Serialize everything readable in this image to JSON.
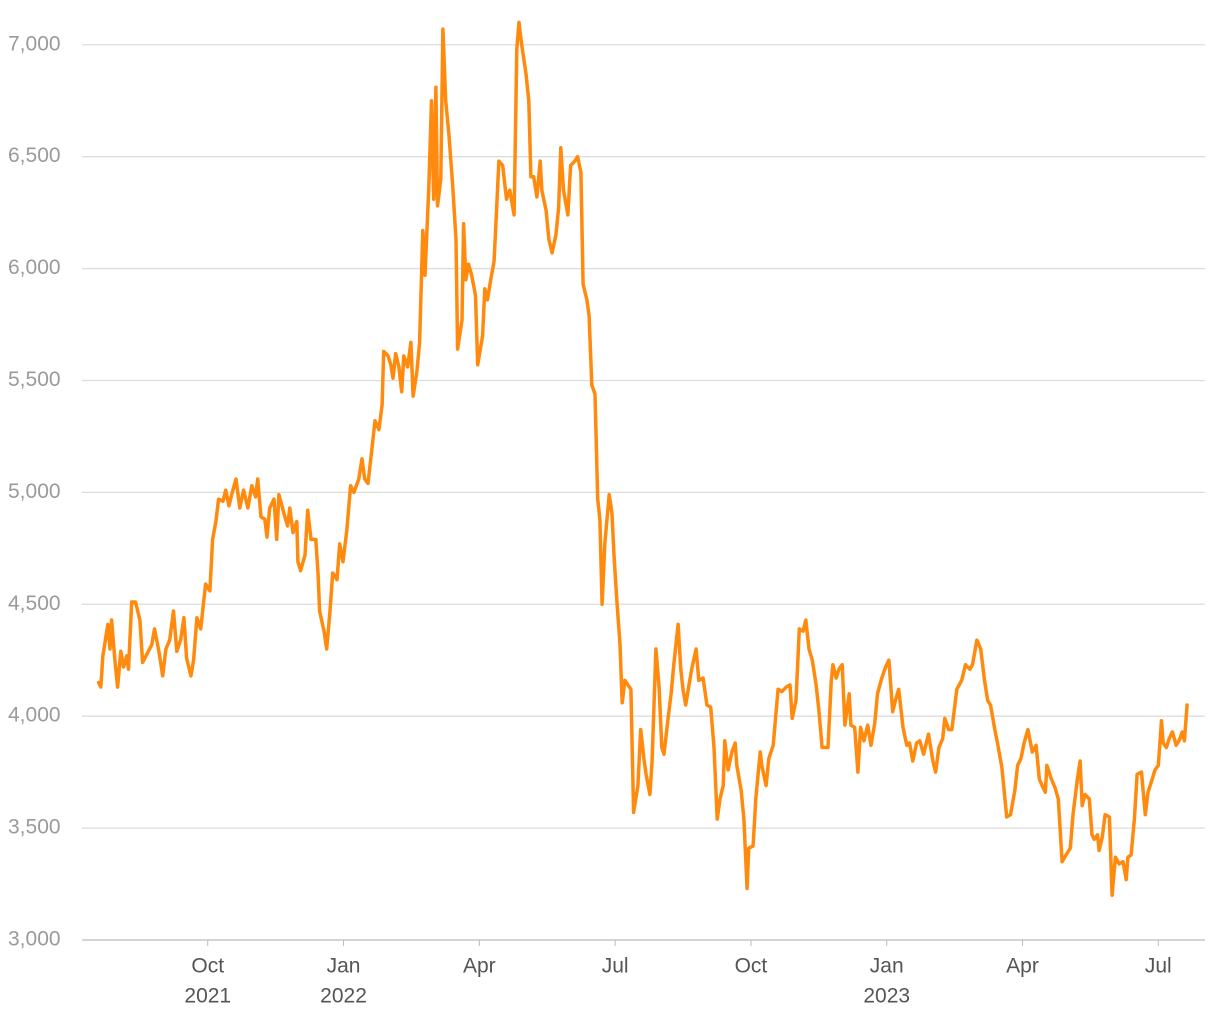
{
  "chart_data": {
    "type": "line",
    "color": "#ff8a0d",
    "grid": true,
    "xlim": [
      2021.524,
      2023.586
    ],
    "xticks": [
      {
        "value": 2021.75,
        "label": "Oct",
        "year": "2021"
      },
      {
        "value": 2022.0,
        "label": "Jan",
        "year": "2022"
      },
      {
        "value": 2022.25,
        "label": "Apr"
      },
      {
        "value": 2022.5,
        "label": "Jul"
      },
      {
        "value": 2022.75,
        "label": "Oct"
      },
      {
        "value": 2023.0,
        "label": "Jan",
        "year": "2023"
      },
      {
        "value": 2023.25,
        "label": "Apr"
      },
      {
        "value": 2023.5,
        "label": "Jul"
      }
    ],
    "ylim": [
      3000,
      7200
    ],
    "yticks": [
      {
        "value": 3000,
        "label": "3,000"
      },
      {
        "value": 3500,
        "label": "3,500"
      },
      {
        "value": 4000,
        "label": "4,000"
      },
      {
        "value": 4500,
        "label": "4,500"
      },
      {
        "value": 5000,
        "label": "5,000"
      },
      {
        "value": 5500,
        "label": "5,500"
      },
      {
        "value": 6000,
        "label": "6,000"
      },
      {
        "value": 6500,
        "label": "6,500"
      },
      {
        "value": 7000,
        "label": "7,000"
      }
    ],
    "x": [
      2021.549,
      2021.553,
      2021.557,
      2021.566,
      2021.57,
      2021.573,
      2021.579,
      2021.584,
      2021.59,
      2021.595,
      2021.601,
      2021.604,
      2021.61,
      2021.617,
      2021.625,
      2021.63,
      2021.647,
      2021.652,
      2021.66,
      2021.667,
      2021.673,
      2021.68,
      2021.687,
      2021.693,
      2021.7,
      2021.706,
      2021.711,
      2021.719,
      2021.724,
      2021.73,
      2021.737,
      2021.746,
      2021.754,
      2021.759,
      2021.765,
      2021.77,
      2021.778,
      2021.783,
      2021.789,
      2021.794,
      2021.802,
      2021.809,
      2021.816,
      2021.824,
      2021.831,
      2021.838,
      2021.842,
      2021.848,
      2021.855,
      2021.859,
      2021.864,
      2021.872,
      2021.877,
      2021.881,
      2021.892,
      2021.897,
      2021.901,
      2021.907,
      2021.914,
      2021.916,
      2021.921,
      2021.929,
      2021.934,
      2021.94,
      2021.949,
      2021.953,
      2021.956,
      2021.964,
      2021.969,
      2021.975,
      2021.98,
      2021.988,
      2021.993,
      2021.999,
      2022.006,
      2022.013,
      2022.019,
      2022.028,
      2022.034,
      2022.039,
      2022.045,
      2022.052,
      2022.058,
      2022.065,
      2022.071,
      2022.074,
      2022.082,
      2022.087,
      2022.091,
      2022.096,
      2022.102,
      2022.107,
      2022.111,
      2022.118,
      2022.124,
      2022.128,
      2022.135,
      2022.14,
      2022.146,
      2022.15,
      2022.157,
      2022.162,
      2022.166,
      2022.17,
      2022.173,
      2022.179,
      2022.183,
      2022.188,
      2022.194,
      2022.201,
      2022.207,
      2022.21,
      2022.218,
      2022.221,
      2022.225,
      2022.23,
      2022.236,
      2022.243,
      2022.247,
      2022.256,
      2022.26,
      2022.265,
      2022.271,
      2022.277,
      2022.28,
      2022.286,
      2022.293,
      2022.3,
      2022.306,
      2022.314,
      2022.319,
      2022.323,
      2022.328,
      2022.336,
      2022.341,
      2022.345,
      2022.35,
      2022.356,
      2022.362,
      2022.365,
      2022.373,
      2022.378,
      2022.384,
      2022.391,
      2022.396,
      2022.4,
      2022.405,
      2022.413,
      2022.418,
      2022.426,
      2022.431,
      2022.437,
      2022.441,
      2022.448,
      2022.452,
      2022.457,
      2022.463,
      2022.468,
      2022.472,
      2022.476,
      2022.481,
      2022.489,
      2022.494,
      2022.498,
      2022.503,
      2022.509,
      2022.513,
      2022.518,
      2022.529,
      2022.534,
      2022.542,
      2022.547,
      2022.553,
      2022.557,
      2022.564,
      2022.568,
      2022.575,
      2022.581,
      2022.586,
      2022.59,
      2022.597,
      2022.603,
      2022.608,
      2022.616,
      2022.621,
      2022.625,
      2022.63,
      2022.636,
      2022.641,
      2022.649,
      2022.654,
      2022.662,
      2022.669,
      2022.676,
      2022.682,
      2022.688,
      2022.693,
      2022.699,
      2022.702,
      2022.708,
      2022.715,
      2022.721,
      2022.724,
      2022.732,
      2022.737,
      2022.743,
      2022.746,
      2022.754,
      2022.759,
      2022.767,
      2022.77,
      2022.778,
      2022.783,
      2022.791,
      2022.796,
      2022.8,
      2022.807,
      2022.815,
      2022.822,
      2022.826,
      2022.833,
      2022.839,
      2022.846,
      2022.851,
      2022.857,
      2022.863,
      2022.87,
      2022.875,
      2022.881,
      2022.892,
      2022.898,
      2022.901,
      2022.907,
      2022.912,
      2022.918,
      2022.923,
      2022.931,
      2022.934,
      2022.941,
      2022.947,
      2022.952,
      2022.958,
      2022.965,
      2022.971,
      2022.978,
      2022.983,
      2022.991,
      2022.998,
      2023.004,
      2023.011,
      2023.016,
      2023.022,
      2023.03,
      2023.037,
      2023.042,
      2023.048,
      2023.055,
      2023.061,
      2023.068,
      2023.077,
      2023.085,
      2023.09,
      2023.096,
      2023.103,
      2023.107,
      2023.114,
      2023.12,
      2023.129,
      2023.138,
      2023.145,
      2023.153,
      2023.158,
      2023.166,
      2023.173,
      2023.18,
      2023.186,
      2023.191,
      2023.199,
      2023.204,
      2023.212,
      2023.221,
      2023.228,
      2023.236,
      2023.241,
      2023.247,
      2023.253,
      2023.26,
      2023.268,
      2023.275,
      2023.281,
      2023.286,
      2023.292,
      2023.295,
      2023.303,
      2023.31,
      2023.316,
      2023.323,
      2023.33,
      2023.338,
      2023.343,
      2023.351,
      2023.356,
      2023.36,
      2023.365,
      2023.373,
      2023.378,
      2023.382,
      2023.388,
      2023.391,
      2023.397,
      2023.402,
      2023.41,
      2023.415,
      2023.421,
      2023.428,
      2023.435,
      2023.441,
      2023.444,
      2023.45,
      2023.456,
      2023.461,
      2023.469,
      2023.476,
      2023.481,
      2023.489,
      2023.494,
      2023.5,
      2023.506,
      2023.509,
      2023.515,
      2023.52,
      2023.526,
      2023.533,
      2023.54,
      2023.544,
      2023.548,
      2023.553
    ],
    "values": [
      4150,
      4130,
      4270,
      4410,
      4300,
      4430,
      4250,
      4130,
      4290,
      4220,
      4270,
      4210,
      4510,
      4510,
      4430,
      4240,
      4320,
      4390,
      4290,
      4180,
      4300,
      4340,
      4470,
      4290,
      4340,
      4440,
      4260,
      4180,
      4250,
      4440,
      4390,
      4590,
      4560,
      4790,
      4870,
      4970,
      4960,
      5010,
      4940,
      4990,
      5060,
      4930,
      5010,
      4930,
      5030,
      4980,
      5060,
      4890,
      4880,
      4800,
      4930,
      4970,
      4790,
      4990,
      4890,
      4850,
      4930,
      4820,
      4870,
      4690,
      4650,
      4720,
      4920,
      4790,
      4790,
      4640,
      4470,
      4380,
      4300,
      4470,
      4640,
      4610,
      4770,
      4690,
      4830,
      5030,
      5000,
      5060,
      5150,
      5060,
      5040,
      5190,
      5320,
      5280,
      5390,
      5630,
      5610,
      5570,
      5510,
      5620,
      5560,
      5450,
      5610,
      5560,
      5670,
      5430,
      5540,
      5670,
      6170,
      5970,
      6360,
      6750,
      6310,
      6810,
      6280,
      6400,
      7070,
      6750,
      6600,
      6370,
      6130,
      5640,
      5770,
      6200,
      5950,
      6020,
      5970,
      5880,
      5570,
      5700,
      5910,
      5860,
      5950,
      6030,
      6170,
      6480,
      6460,
      6310,
      6350,
      6240,
      6980,
      7100,
      7000,
      6870,
      6750,
      6410,
      6410,
      6320,
      6480,
      6350,
      6260,
      6130,
      6070,
      6150,
      6270,
      6540,
      6350,
      6240,
      6460,
      6480,
      6500,
      6430,
      5930,
      5860,
      5790,
      5480,
      5440,
      4970,
      4880,
      4500,
      4770,
      4990,
      4910,
      4720,
      4520,
      4320,
      4060,
      4160,
      4120,
      3570,
      3690,
      3940,
      3810,
      3740,
      3650,
      3800,
      4300,
      4130,
      3860,
      3830,
      3980,
      4100,
      4230,
      4410,
      4210,
      4120,
      4050,
      4140,
      4210,
      4300,
      4160,
      4170,
      4050,
      4040,
      3860,
      3540,
      3630,
      3690,
      3890,
      3760,
      3840,
      3880,
      3780,
      3670,
      3540,
      3230,
      3410,
      3420,
      3630,
      3840,
      3780,
      3690,
      3810,
      3870,
      4010,
      4120,
      4110,
      4130,
      4140,
      3990,
      4070,
      4390,
      4380,
      4430,
      4300,
      4250,
      4140,
      4030,
      3860,
      3860,
      4160,
      4230,
      4170,
      4210,
      4230,
      3960,
      4100,
      3960,
      3950,
      3750,
      3950,
      3890,
      3960,
      3870,
      3970,
      4100,
      4170,
      4220,
      4250,
      4020,
      4070,
      4120,
      3950,
      3870,
      3880,
      3800,
      3880,
      3890,
      3830,
      3920,
      3800,
      3750,
      3860,
      3900,
      3990,
      3940,
      3940,
      4120,
      4160,
      4230,
      4210,
      4230,
      4340,
      4300,
      4160,
      4070,
      4050,
      3940,
      3880,
      3770,
      3550,
      3560,
      3670,
      3780,
      3810,
      3880,
      3940,
      3840,
      3870,
      3720,
      3690,
      3660,
      3780,
      3720,
      3680,
      3630,
      3350,
      3380,
      3410,
      3560,
      3720,
      3800,
      3600,
      3650,
      3630,
      3470,
      3450,
      3470,
      3400,
      3460,
      3560,
      3550,
      3200,
      3370,
      3340,
      3350,
      3270,
      3370,
      3380,
      3540,
      3740,
      3750,
      3560,
      3660,
      3720,
      3760,
      3780,
      3980,
      3880,
      3860,
      3900,
      3930,
      3870,
      3900,
      3930,
      3890,
      4050
    ]
  }
}
